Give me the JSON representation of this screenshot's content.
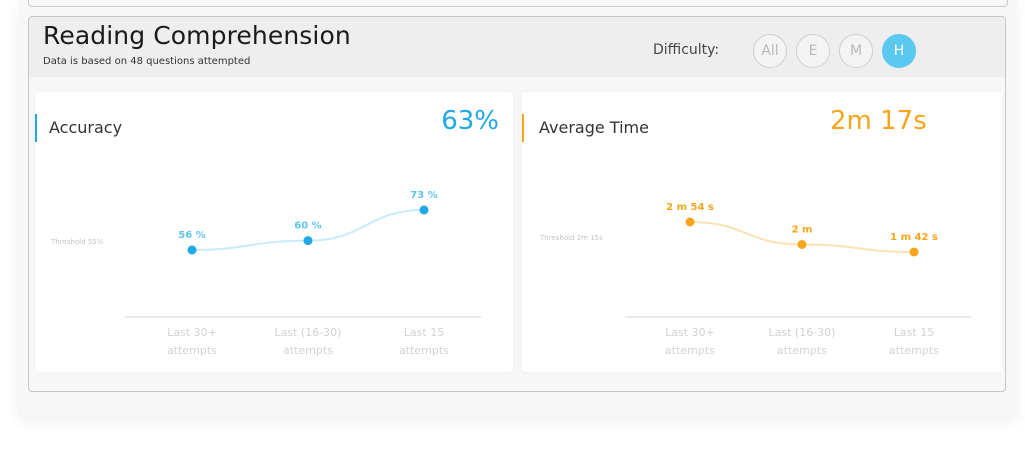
{
  "section": {
    "title": "Reading Comprehension",
    "subtitle": "Data is based on 48 questions attempted",
    "difficulty_label": "Difficulty:",
    "difficulty_options": [
      "All",
      "E",
      "M",
      "H"
    ],
    "difficulty_selected": "H"
  },
  "colors": {
    "accuracy": "#1fa9e6",
    "time": "#f7a51c",
    "active_button": "#5bc8ef"
  },
  "panels": {
    "accuracy": {
      "title": "Accuracy",
      "value": "63%",
      "threshold_label": "Threshold 55%"
    },
    "time": {
      "title": "Average Time",
      "value": "2m 17s",
      "threshold_label": "Threshold 2m 15s"
    }
  },
  "chart_data": [
    {
      "type": "line",
      "categories": [
        "Last 30+ attempts",
        "Last (16-30) attempts",
        "Last 15 attempts"
      ],
      "series": [
        {
          "values": [
            56,
            60,
            73
          ]
        }
      ],
      "data_labels": [
        "56 %",
        "60 %",
        "73 %"
      ],
      "threshold": {
        "value": 55,
        "label": "Threshold 55%"
      },
      "ylim": [
        20,
        80
      ],
      "title": "",
      "xlabel": "",
      "ylabel": "",
      "grid": false
    },
    {
      "type": "line",
      "categories": [
        "Last 30+ attempts",
        "Last (16-30) attempts",
        "Last 15 attempts"
      ],
      "series": [
        {
          "values": [
            174,
            120,
            102
          ]
        }
      ],
      "data_labels": [
        "2 m 54 s",
        "2 m",
        "1 m 42 s"
      ],
      "threshold": {
        "value": 135,
        "label": "Threshold 2m 15s"
      },
      "ylim": [
        0,
        220
      ],
      "title": "",
      "xlabel": "",
      "ylabel": "",
      "grid": false
    }
  ]
}
